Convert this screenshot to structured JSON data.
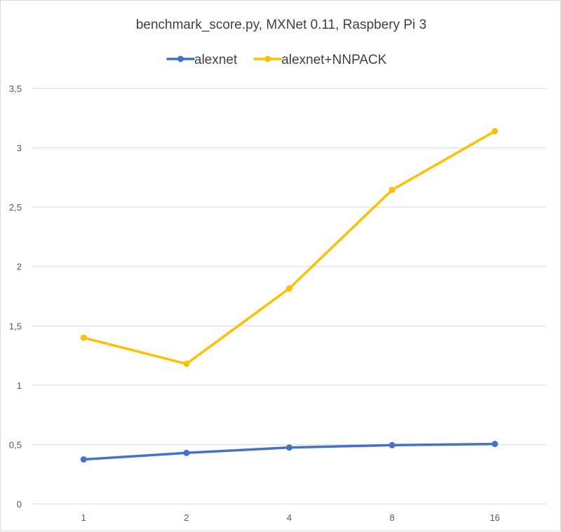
{
  "chart_data": {
    "type": "line",
    "title": "benchmark_score.py,  MXNet 0.11, Raspbery Pi 3",
    "xlabel": "",
    "ylabel": "",
    "categories": [
      "1",
      "2",
      "4",
      "8",
      "16"
    ],
    "series": [
      {
        "name": "alexnet",
        "color": "#4472c4",
        "values": [
          0.375,
          0.43,
          0.475,
          0.495,
          0.505
        ]
      },
      {
        "name": "alexnet+NNPACK",
        "color": "#ffc000",
        "values": [
          1.4,
          1.18,
          1.815,
          2.645,
          3.14
        ]
      }
    ],
    "ylim": [
      0,
      3.5
    ],
    "yticks": [
      "0",
      "0,5",
      "1",
      "1,5",
      "2",
      "2,5",
      "3",
      "3,5"
    ],
    "ytick_values": [
      0,
      0.5,
      1,
      1.5,
      2,
      2.5,
      3,
      3.5
    ],
    "grid": true,
    "legend": "top-center"
  }
}
